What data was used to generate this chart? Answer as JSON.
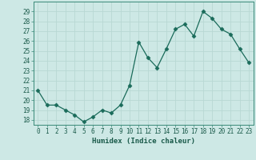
{
  "x": [
    0,
    1,
    2,
    3,
    4,
    5,
    6,
    7,
    8,
    9,
    10,
    11,
    12,
    13,
    14,
    15,
    16,
    17,
    18,
    19,
    20,
    21,
    22,
    23
  ],
  "y": [
    21.0,
    19.5,
    19.5,
    19.0,
    18.5,
    17.8,
    18.3,
    19.0,
    18.7,
    19.5,
    21.5,
    25.9,
    24.3,
    23.3,
    25.2,
    27.2,
    27.7,
    26.5,
    29.0,
    28.3,
    27.2,
    26.7,
    25.2,
    23.8
  ],
  "xlabel": "Humidex (Indice chaleur)",
  "ylim": [
    17.5,
    30.0
  ],
  "xlim": [
    -0.5,
    23.5
  ],
  "yticks": [
    18,
    19,
    20,
    21,
    22,
    23,
    24,
    25,
    26,
    27,
    28,
    29
  ],
  "xticks": [
    0,
    1,
    2,
    3,
    4,
    5,
    6,
    7,
    8,
    9,
    10,
    11,
    12,
    13,
    14,
    15,
    16,
    17,
    18,
    19,
    20,
    21,
    22,
    23
  ],
  "bg_color": "#cde8e5",
  "grid_color": "#b8d8d4",
  "line_color": "#1a6b5a",
  "marker_color": "#1a6b5a",
  "axis_color": "#3a8a78",
  "tick_color": "#1a5a4a",
  "label_color": "#1a5a4a",
  "font_size_tick": 5.5,
  "font_size_label": 6.5
}
